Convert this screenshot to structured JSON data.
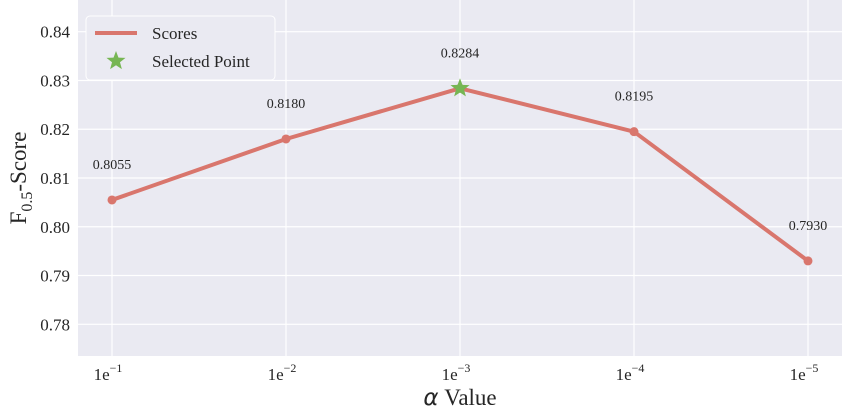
{
  "chart_data": {
    "type": "line",
    "x_tick_labels": [
      {
        "base": "1e",
        "exp": "−1"
      },
      {
        "base": "1e",
        "exp": "−2"
      },
      {
        "base": "1e",
        "exp": "−3"
      },
      {
        "base": "1e",
        "exp": "−4"
      },
      {
        "base": "1e",
        "exp": "−5"
      }
    ],
    "x": [
      0.1,
      0.01,
      0.001,
      0.0001,
      1e-05
    ],
    "series": [
      {
        "name": "Scores",
        "values": [
          0.8055,
          0.818,
          0.8284,
          0.8195,
          0.793
        ],
        "color": "#d9766d"
      }
    ],
    "data_labels": [
      "0.8055",
      "0.8180",
      "0.8284",
      "0.8195",
      "0.7930"
    ],
    "selected_point": {
      "name": "Selected Point",
      "x": 0.001,
      "y": 0.8284,
      "color": "#77b654",
      "marker": "star"
    },
    "xlabel": {
      "symbol": "α",
      "text": " Value"
    },
    "ylabel": {
      "base": "F",
      "sub": "0.5",
      "rest": "-Score"
    },
    "y_ticks": [
      0.78,
      0.79,
      0.8,
      0.81,
      0.82,
      0.83,
      0.84
    ],
    "y_tick_labels": [
      "0.78",
      "0.79",
      "0.80",
      "0.81",
      "0.82",
      "0.83",
      "0.84"
    ],
    "ylim": [
      0.7735,
      0.8465
    ],
    "x_scale": "log",
    "x_axis_direction": "decreasing",
    "grid": true,
    "legend_position": "top-left",
    "colors": {
      "background": "#eaeaf2",
      "grid": "#ffffff"
    }
  }
}
